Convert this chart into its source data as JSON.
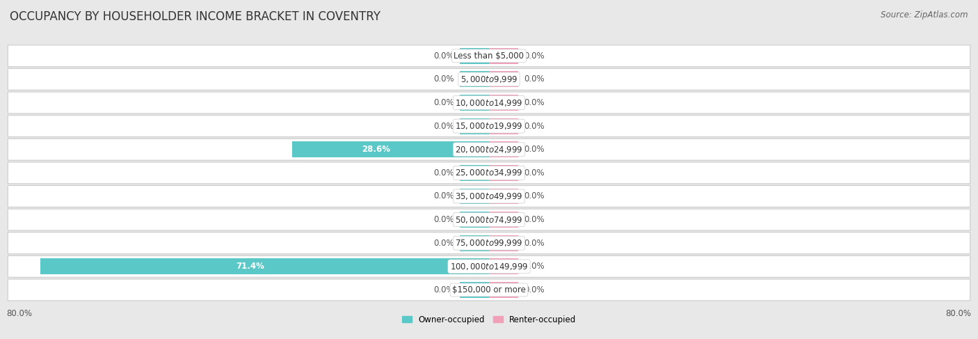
{
  "title": "OCCUPANCY BY HOUSEHOLDER INCOME BRACKET IN COVENTRY",
  "source": "Source: ZipAtlas.com",
  "categories": [
    "Less than $5,000",
    "$5,000 to $9,999",
    "$10,000 to $14,999",
    "$15,000 to $19,999",
    "$20,000 to $24,999",
    "$25,000 to $34,999",
    "$35,000 to $49,999",
    "$50,000 to $74,999",
    "$75,000 to $99,999",
    "$100,000 to $149,999",
    "$150,000 or more"
  ],
  "owner_values": [
    0.0,
    0.0,
    0.0,
    0.0,
    28.6,
    0.0,
    0.0,
    0.0,
    0.0,
    71.4,
    0.0
  ],
  "renter_values": [
    0.0,
    0.0,
    0.0,
    0.0,
    0.0,
    0.0,
    0.0,
    0.0,
    0.0,
    0.0,
    0.0
  ],
  "owner_color": "#5bc8c8",
  "renter_color": "#f0a0b8",
  "owner_label": "Owner-occupied",
  "renter_label": "Renter-occupied",
  "xlim": 80.0,
  "background_color": "#e8e8e8",
  "bar_background_color": "#ffffff",
  "title_fontsize": 12,
  "source_fontsize": 8.5,
  "label_fontsize": 8.5,
  "category_fontsize": 8.5,
  "bar_height": 0.68,
  "stub_size": 5.0
}
